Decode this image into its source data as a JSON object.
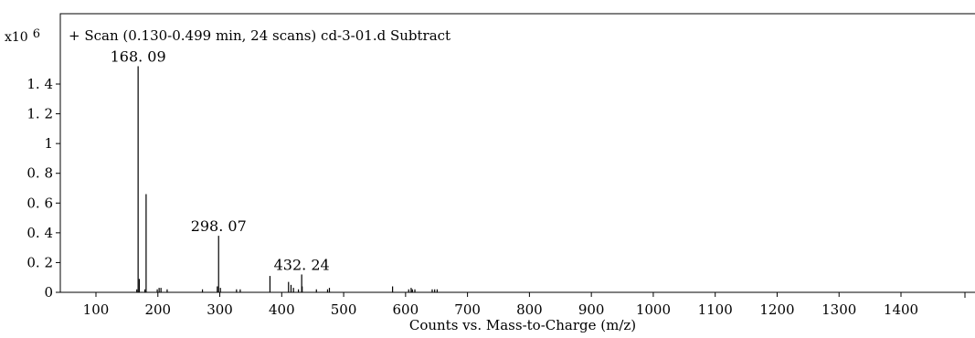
{
  "chart_data": {
    "type": "bar",
    "title": "+ Scan (0.130-0.499 min, 24 scans) cd-3-01.d  Subtract",
    "xlabel": "Counts vs. Mass-to-Charge (m/z)",
    "ylabel": "",
    "y_multiplier": "x10",
    "y_multiplier_exp": "6",
    "xlim": [
      50,
      1500
    ],
    "ylim": [
      0,
      1.6
    ],
    "x_ticks": [
      100,
      200,
      300,
      400,
      500,
      600,
      700,
      800,
      900,
      1000,
      1100,
      1200,
      1300,
      1400
    ],
    "x_tick_labels": [
      "100",
      "200",
      "300",
      "400",
      "500",
      "600",
      "700",
      "800",
      "900",
      "1000",
      "1100",
      "1200",
      "1300",
      "1400"
    ],
    "y_ticks": [
      0,
      0.2,
      0.4,
      0.6,
      0.8,
      1,
      1.2,
      1.4
    ],
    "y_tick_labels": [
      "0",
      "0. 2",
      "0. 4",
      "0. 6",
      "0. 8",
      "1",
      "1. 2",
      "1. 4"
    ],
    "grid": false,
    "series": [
      {
        "x": [
          166,
          168.09,
          170,
          179,
          181,
          199,
          202,
          205,
          215,
          272,
          296,
          298.07,
          301,
          327,
          333,
          381,
          411,
          415,
          419,
          427,
          432.24,
          433,
          456,
          474,
          477,
          579,
          605,
          609,
          611,
          615,
          643,
          647,
          651
        ],
        "values": [
          0.02,
          1.52,
          0.09,
          0.02,
          0.66,
          0.02,
          0.03,
          0.03,
          0.02,
          0.02,
          0.04,
          0.38,
          0.03,
          0.02,
          0.02,
          0.11,
          0.07,
          0.05,
          0.03,
          0.02,
          0.12,
          0.04,
          0.02,
          0.02,
          0.03,
          0.04,
          0.02,
          0.03,
          0.02,
          0.02,
          0.02,
          0.02,
          0.02
        ]
      }
    ],
    "annotations": [
      {
        "x": 168.09,
        "y": 1.52,
        "text": "168. 09"
      },
      {
        "x": 298.07,
        "y": 0.38,
        "text": "298. 07"
      },
      {
        "x": 432.24,
        "y": 0.12,
        "text": "432. 24"
      }
    ]
  }
}
